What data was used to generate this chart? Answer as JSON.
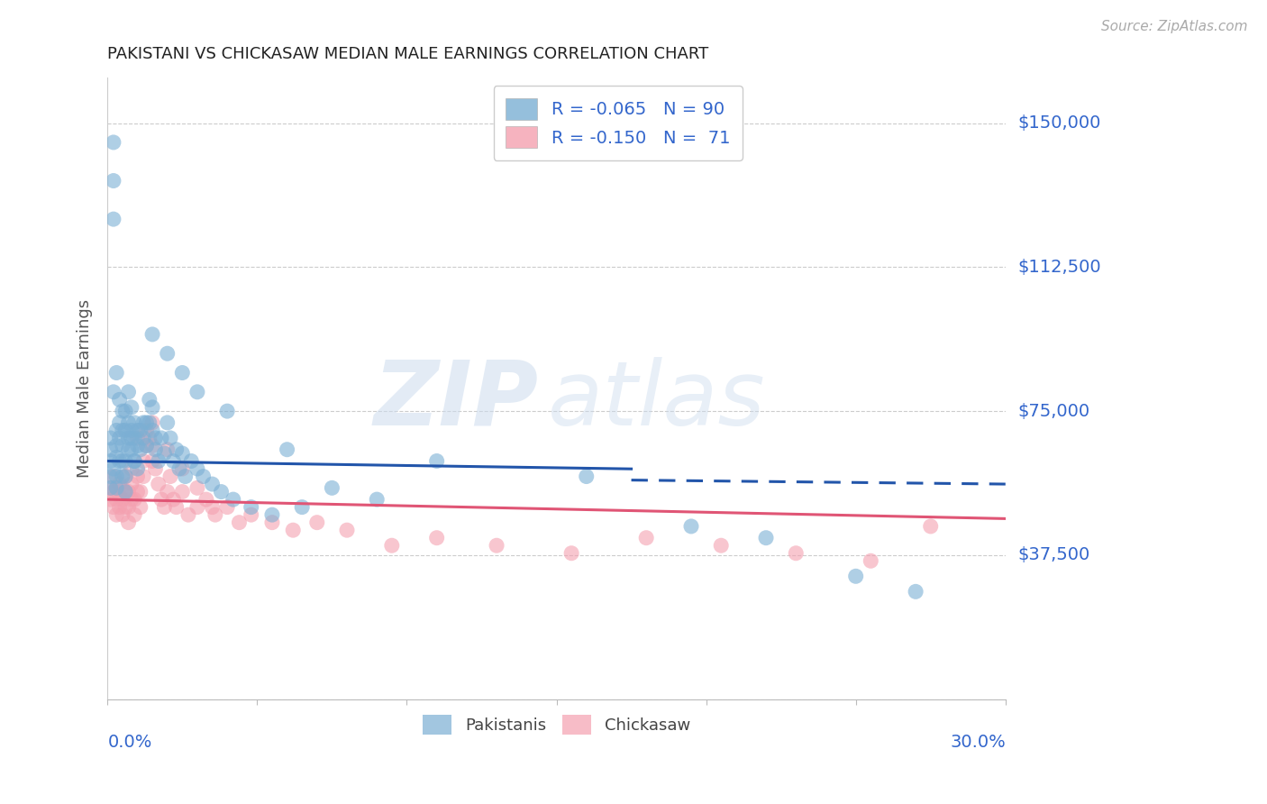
{
  "title": "PAKISTANI VS CHICKASAW MEDIAN MALE EARNINGS CORRELATION CHART",
  "source": "Source: ZipAtlas.com",
  "ylabel": "Median Male Earnings",
  "y_ticks": [
    0,
    37500,
    75000,
    112500,
    150000
  ],
  "y_tick_labels": [
    "",
    "$37,500",
    "$75,000",
    "$112,500",
    "$150,000"
  ],
  "x_lim": [
    0.0,
    0.3
  ],
  "y_lim": [
    0,
    162000
  ],
  "watermark_zip": "ZIP",
  "watermark_atlas": "atlas",
  "blue_color": "#7bafd4",
  "pink_color": "#f4a0b0",
  "blue_line_color": "#2255aa",
  "pink_line_color": "#e05575",
  "title_color": "#222222",
  "right_label_color": "#3366cc",
  "ylabel_color": "#555555",
  "source_color": "#aaaaaa",
  "blue_r": "-0.065",
  "blue_n": "90",
  "pink_r": "-0.150",
  "pink_n": "71",
  "blue_trend_y0": 62000,
  "blue_trend_y1": 56000,
  "pink_trend_y0": 52000,
  "pink_trend_y1": 47000,
  "blue_solid_cutoff": 0.175,
  "blue_scatter_x": [
    0.001,
    0.001,
    0.001,
    0.001,
    0.001,
    0.002,
    0.002,
    0.002,
    0.002,
    0.003,
    0.003,
    0.003,
    0.003,
    0.003,
    0.004,
    0.004,
    0.004,
    0.005,
    0.005,
    0.005,
    0.005,
    0.006,
    0.006,
    0.006,
    0.006,
    0.007,
    0.007,
    0.007,
    0.008,
    0.008,
    0.008,
    0.009,
    0.009,
    0.009,
    0.01,
    0.01,
    0.01,
    0.011,
    0.011,
    0.012,
    0.012,
    0.013,
    0.013,
    0.014,
    0.014,
    0.015,
    0.015,
    0.016,
    0.016,
    0.017,
    0.018,
    0.019,
    0.02,
    0.021,
    0.022,
    0.023,
    0.024,
    0.025,
    0.026,
    0.028,
    0.03,
    0.032,
    0.035,
    0.038,
    0.042,
    0.048,
    0.055,
    0.065,
    0.075,
    0.09,
    0.002,
    0.003,
    0.004,
    0.005,
    0.006,
    0.007,
    0.008,
    0.009,
    0.015,
    0.02,
    0.025,
    0.03,
    0.04,
    0.06,
    0.11,
    0.16,
    0.195,
    0.22,
    0.25,
    0.27
  ],
  "blue_scatter_y": [
    62000,
    65000,
    68000,
    58000,
    55000,
    145000,
    135000,
    125000,
    60000,
    63000,
    66000,
    70000,
    58000,
    55000,
    62000,
    68000,
    72000,
    58000,
    62000,
    66000,
    70000,
    54000,
    58000,
    62000,
    75000,
    80000,
    68000,
    72000,
    65000,
    70000,
    76000,
    62000,
    68000,
    72000,
    60000,
    66000,
    70000,
    65000,
    70000,
    68000,
    72000,
    66000,
    72000,
    78000,
    72000,
    76000,
    70000,
    65000,
    68000,
    62000,
    68000,
    64000,
    72000,
    68000,
    62000,
    65000,
    60000,
    64000,
    58000,
    62000,
    60000,
    58000,
    56000,
    54000,
    52000,
    50000,
    48000,
    50000,
    55000,
    52000,
    80000,
    85000,
    78000,
    75000,
    70000,
    65000,
    68000,
    62000,
    95000,
    90000,
    85000,
    80000,
    75000,
    65000,
    62000,
    58000,
    45000,
    42000,
    32000,
    28000
  ],
  "pink_scatter_x": [
    0.001,
    0.001,
    0.002,
    0.002,
    0.002,
    0.003,
    0.003,
    0.003,
    0.004,
    0.004,
    0.004,
    0.005,
    0.005,
    0.005,
    0.006,
    0.006,
    0.006,
    0.007,
    0.007,
    0.007,
    0.008,
    0.008,
    0.008,
    0.009,
    0.009,
    0.01,
    0.01,
    0.011,
    0.011,
    0.012,
    0.012,
    0.013,
    0.013,
    0.014,
    0.015,
    0.015,
    0.016,
    0.017,
    0.018,
    0.019,
    0.02,
    0.021,
    0.022,
    0.023,
    0.025,
    0.027,
    0.03,
    0.033,
    0.036,
    0.04,
    0.044,
    0.048,
    0.055,
    0.062,
    0.07,
    0.08,
    0.095,
    0.11,
    0.13,
    0.155,
    0.18,
    0.205,
    0.23,
    0.255,
    0.275,
    0.01,
    0.015,
    0.02,
    0.025,
    0.03,
    0.035
  ],
  "pink_scatter_y": [
    52000,
    55000,
    58000,
    54000,
    50000,
    52000,
    55000,
    48000,
    50000,
    53000,
    56000,
    48000,
    52000,
    55000,
    50000,
    54000,
    58000,
    46000,
    50000,
    54000,
    52000,
    56000,
    60000,
    48000,
    52000,
    54000,
    58000,
    50000,
    54000,
    58000,
    62000,
    66000,
    70000,
    68000,
    62000,
    66000,
    60000,
    56000,
    52000,
    50000,
    54000,
    58000,
    52000,
    50000,
    54000,
    48000,
    50000,
    52000,
    48000,
    50000,
    46000,
    48000,
    46000,
    44000,
    46000,
    44000,
    40000,
    42000,
    40000,
    38000,
    42000,
    40000,
    38000,
    36000,
    45000,
    68000,
    72000,
    65000,
    60000,
    55000,
    50000
  ]
}
